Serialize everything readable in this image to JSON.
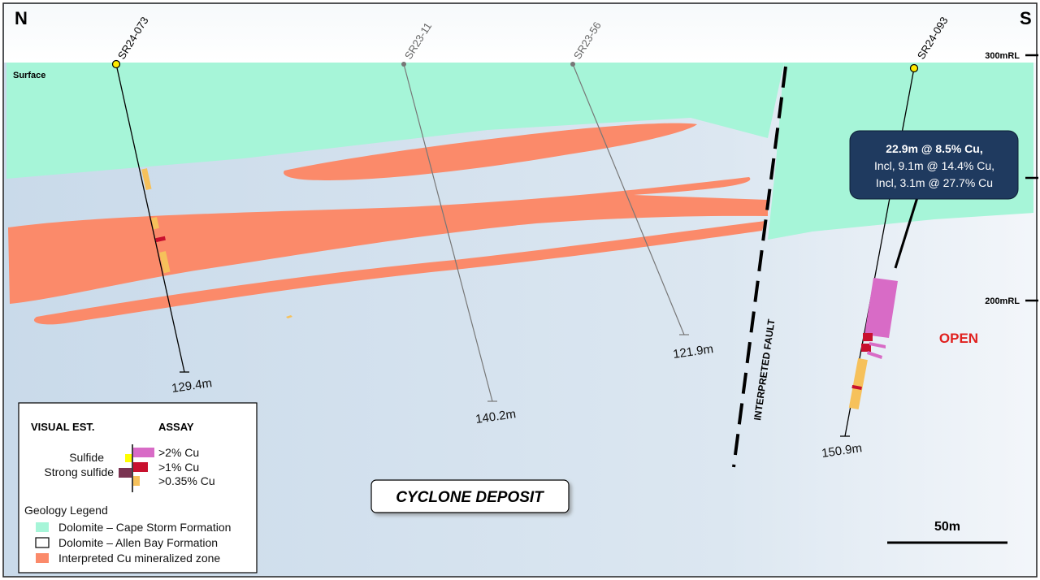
{
  "orientation": {
    "north": "N",
    "south": "S"
  },
  "surface_label": "Surface",
  "rl_labels": [
    "300mRL",
    "200mRL"
  ],
  "holes": [
    {
      "id": "SR24-073",
      "depth": "129.4m",
      "collar_color": "#ffea00"
    },
    {
      "id": "SR23-11",
      "depth": "140.2m",
      "collar_color": "#777777"
    },
    {
      "id": "SR23-56",
      "depth": "121.9m",
      "collar_color": "#777777"
    },
    {
      "id": "SR24-093",
      "depth": "150.9m",
      "collar_color": "#ffea00"
    }
  ],
  "fault_label": "INTERPRETED FAULT",
  "callout": {
    "line1": "22.9m @ 8.5% Cu,",
    "line2": "Incl, 9.1m @ 14.4% Cu,",
    "line3": "Incl, 3.1m @ 27.7% Cu"
  },
  "open_label": "OPEN",
  "title": "CYCLONE DEPOSIT",
  "scale_bar_label": "50m",
  "legend": {
    "visual_header": "VISUAL EST.",
    "assay_header": "ASSAY",
    "sulfide": "Sulfide",
    "strong_sulfide": "Strong sulfide",
    "assay_gt2": ">2% Cu",
    "assay_gt1": ">1% Cu",
    "assay_gt035": ">0.35% Cu",
    "geology_title": "Geology Legend",
    "geo_cape_storm": "Dolomite – Cape Storm Formation",
    "geo_allen_bay": "Dolomite – Allen Bay Formation",
    "geo_cu_zone": "Interpreted Cu mineralized zone"
  },
  "colors": {
    "cape_storm": "#a6f5d8",
    "allen_bay": "#d6e3ef",
    "cu_zone": "#fb8a6a",
    "assay_gt2": "#d86bc6",
    "assay_gt1": "#c8102e",
    "assay_gt035": "#f6c15b",
    "sulfide": "#ffff00",
    "strong_sulfide": "#7a3351",
    "callout_bg": "#1f3a5f",
    "open_text": "#e0201e"
  }
}
